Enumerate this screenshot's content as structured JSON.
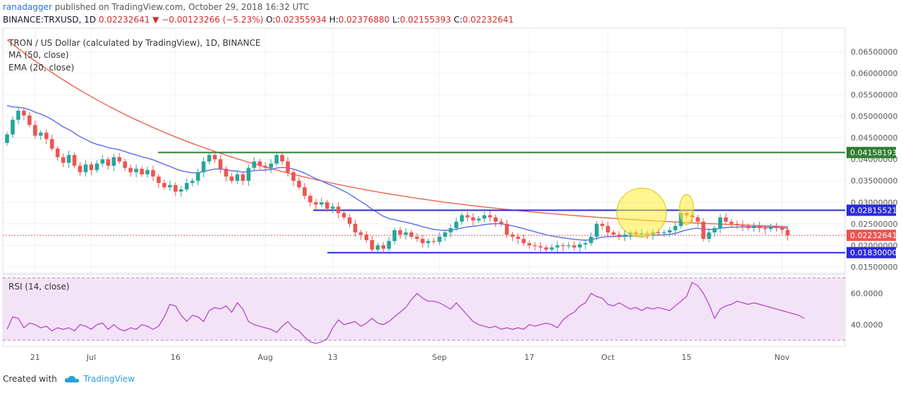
{
  "header": {
    "author": "ranadagger",
    "published_text": "published on TradingView.com, October 29, 2018 16:32 UTC",
    "symbol_line": "BINANCE:TRXUSD, 1D",
    "last": "0.02232641",
    "change_arrow": "▼",
    "change": "−0.00123266 (−5.23%)",
    "ohlc": {
      "o_label": "O:",
      "o": "0.02355934",
      "h_label": "H:",
      "h": "0.02376880",
      "l_label": "L:",
      "l": "0.02155393",
      "c_label": "C:",
      "c": "0.02232641"
    }
  },
  "legend": {
    "title": "TRON / US Dollar (calculated by TradingView), 1D, BINANCE",
    "ma": "MA (50, close)",
    "ema": "EMA (20, close)",
    "rsi": "RSI (14, close)"
  },
  "footer": {
    "created_with": "Created with",
    "brand": "TradingView"
  },
  "colors": {
    "up": "#26a69a",
    "down": "#ef5350",
    "ma": "#f0624c",
    "ema": "#5a6cf0",
    "resistance": "#2e7d32",
    "range": "#2b2bd9",
    "rsi_line": "#b03cc8",
    "rsi_fill": "#f3e3f7",
    "highlight": "#ffee33",
    "price_tag": "#ef5350"
  },
  "chart_data": [
    {
      "type": "candlestick",
      "title": "TRON / US Dollar (calculated by TradingView), 1D, BINANCE",
      "x_ticks": [
        "21",
        "Jul",
        "16",
        "Aug",
        "13",
        "Sep",
        "17",
        "Oct",
        "15",
        "Nov"
      ],
      "y_ticks": [
        "0.06500000",
        "0.06000000",
        "0.05500000",
        "0.05000000",
        "0.04500000",
        "0.04000000",
        "0.03500000",
        "0.03000000",
        "0.02500000",
        "0.02000000",
        "0.01500000"
      ],
      "y_range": [
        0.0135,
        0.0705
      ],
      "start_date": "2018-06-16",
      "end_date": "2018-10-29",
      "closes": [
        0.0458,
        0.0492,
        0.0513,
        0.0502,
        0.048,
        0.0455,
        0.0462,
        0.0447,
        0.0425,
        0.0405,
        0.0392,
        0.041,
        0.0385,
        0.037,
        0.0388,
        0.0375,
        0.039,
        0.04,
        0.0385,
        0.0405,
        0.0395,
        0.038,
        0.037,
        0.0378,
        0.0365,
        0.0375,
        0.036,
        0.0345,
        0.0335,
        0.034,
        0.0325,
        0.033,
        0.0345,
        0.035,
        0.037,
        0.0395,
        0.041,
        0.04,
        0.0378,
        0.036,
        0.035,
        0.0365,
        0.035,
        0.038,
        0.0395,
        0.0385,
        0.038,
        0.039,
        0.041,
        0.0395,
        0.037,
        0.035,
        0.0335,
        0.0315,
        0.03,
        0.0295,
        0.03,
        0.0285,
        0.029,
        0.0275,
        0.0265,
        0.025,
        0.023,
        0.0225,
        0.0212,
        0.019,
        0.02,
        0.0192,
        0.021,
        0.0235,
        0.0225,
        0.023,
        0.022,
        0.0215,
        0.0205,
        0.021,
        0.0208,
        0.022,
        0.023,
        0.024,
        0.0255,
        0.027,
        0.0265,
        0.0258,
        0.0262,
        0.027,
        0.0265,
        0.0255,
        0.025,
        0.0225,
        0.022,
        0.0215,
        0.0205,
        0.02,
        0.0198,
        0.0195,
        0.019,
        0.0195,
        0.02,
        0.0198,
        0.02,
        0.0195,
        0.0202,
        0.0205,
        0.022,
        0.025,
        0.0245,
        0.023,
        0.0225,
        0.022,
        0.0225,
        0.023,
        0.0225,
        0.0228,
        0.0225,
        0.023,
        0.0228,
        0.023,
        0.0235,
        0.0245,
        0.0275,
        0.027,
        0.0265,
        0.0255,
        0.0215,
        0.023,
        0.024,
        0.0265,
        0.0255,
        0.025,
        0.0248,
        0.0245,
        0.024,
        0.0245,
        0.024,
        0.0238,
        0.0242,
        0.024,
        0.0236,
        0.0223
      ],
      "lines": [
        {
          "name": "MA (50, close)",
          "from": 0.0678,
          "to": 0.0225
        },
        {
          "name": "EMA (20, close)",
          "from": 0.0525,
          "to": 0.0232
        }
      ],
      "levels": [
        "0.04158193",
        "0.02815521",
        "0.02232641",
        "0.01830000"
      ],
      "annotations": [
        "highlight Oct 5-10",
        "highlight Oct 15"
      ]
    },
    {
      "type": "line",
      "title": "RSI (14, close)",
      "y_ticks": [
        "60.0000",
        "40.0000"
      ],
      "y_range": [
        26,
        72
      ],
      "band": [
        30,
        70
      ],
      "values": [
        37,
        45,
        44,
        38,
        41,
        40,
        38,
        39,
        36,
        38,
        37,
        38,
        36,
        40,
        39,
        37,
        40,
        41,
        37,
        40,
        37,
        36,
        38,
        37,
        40,
        39,
        37,
        39,
        45,
        53,
        52,
        46,
        42,
        46,
        45,
        42,
        49,
        51,
        50,
        52,
        48,
        54,
        50,
        42,
        40,
        39,
        38,
        37,
        35,
        39,
        42,
        38,
        36,
        32,
        29,
        28,
        29,
        31,
        38,
        43,
        40,
        41,
        42,
        39,
        41,
        44,
        41,
        40,
        42,
        45,
        48,
        51,
        56,
        60,
        57,
        55,
        55,
        54,
        52,
        50,
        54,
        50,
        46,
        42,
        40,
        39,
        38,
        39,
        37,
        38,
        37,
        38,
        37,
        40,
        39,
        40,
        41,
        40,
        38,
        43,
        46,
        48,
        52,
        54,
        60,
        58,
        57,
        53,
        52,
        54,
        52,
        50,
        51,
        49,
        51,
        50,
        51,
        50,
        49,
        52,
        55,
        58,
        67,
        65,
        60,
        53,
        44,
        50,
        52,
        53,
        55,
        54,
        53,
        54,
        53,
        52,
        51,
        50,
        49,
        48,
        47,
        46,
        44
      ],
      "values_note": "estimated"
    }
  ]
}
